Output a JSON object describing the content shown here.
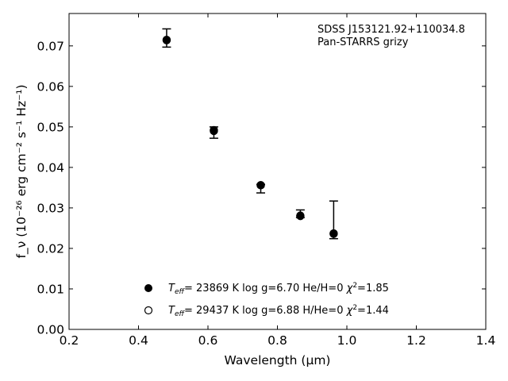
{
  "chart_data": {
    "type": "scatter",
    "xlabel": "Wavelength (μm)",
    "ylabel": "f_ν (10⁻²⁶ erg cm⁻² s⁻¹ Hz⁻¹)",
    "xlim": [
      0.2,
      1.4
    ],
    "ylim": [
      0.0,
      0.078
    ],
    "x_ticks": [
      0.2,
      0.4,
      0.6,
      0.8,
      1.0,
      1.2,
      1.4
    ],
    "y_ticks": [
      0.0,
      0.01,
      0.02,
      0.03,
      0.04,
      0.05,
      0.06,
      0.07
    ],
    "grid": false,
    "annotation": [
      "SDSS J153121.92+110034.8",
      "Pan-STARRS grizy"
    ],
    "observed": {
      "x": [
        0.481,
        0.617,
        0.752,
        0.866,
        0.962
      ],
      "y": [
        0.0711,
        0.0485,
        0.0355,
        0.0282,
        0.0238
      ],
      "yerr_low": [
        0.0697,
        0.0472,
        0.0337,
        0.0276,
        0.0224
      ],
      "yerr_high": [
        0.0742,
        0.05,
        0.0358,
        0.0295,
        0.0317
      ]
    },
    "series": [
      {
        "name": "Teff= 23869 K  log g=6.70  He/H=0  χ2=1.85",
        "marker": "filled-circle",
        "x": [
          0.481,
          0.617,
          0.752,
          0.866,
          0.962
        ],
        "y": [
          0.0715,
          0.0492,
          0.0356,
          0.028,
          0.0236
        ]
      },
      {
        "name": "Teff= 29437 K  log g=6.88  H/He=0  χ2=1.44",
        "marker": "open-circle",
        "x": [
          0.481,
          0.617,
          0.752,
          0.866,
          0.962
        ],
        "y": [
          0.0714,
          0.049,
          0.0356,
          0.0281,
          0.0237
        ]
      }
    ],
    "legend": [
      {
        "marker": "filled-circle",
        "teff": "23869",
        "logg": "6.70",
        "comp": "He/H=0",
        "chi2": "1.85"
      },
      {
        "marker": "open-circle",
        "teff": "29437",
        "logg": "6.88",
        "comp": "H/He=0",
        "chi2": "1.44"
      }
    ],
    "legend_placement": "lower-center"
  }
}
